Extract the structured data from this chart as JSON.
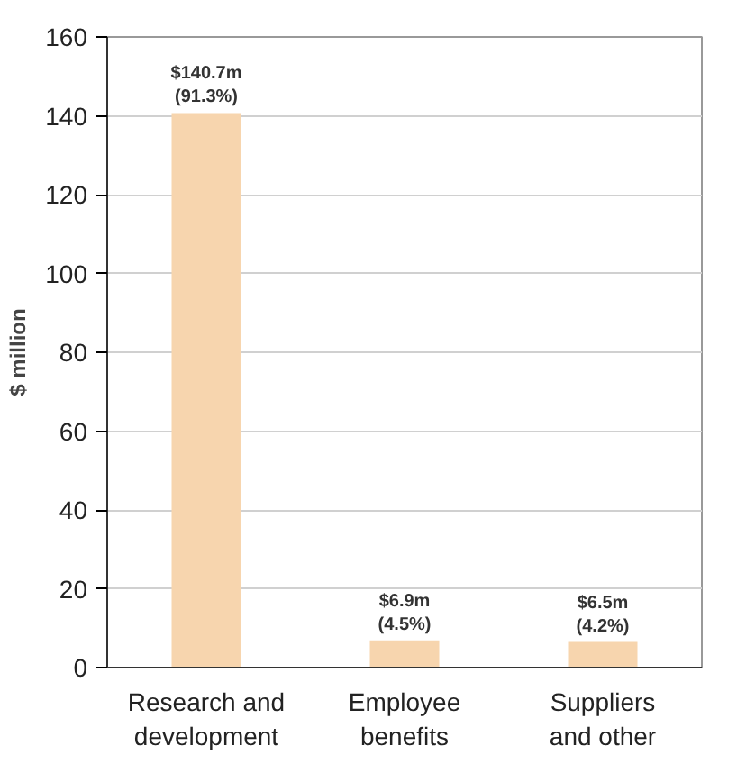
{
  "chart_data": {
    "type": "bar",
    "ylabel": "$ million",
    "categories": [
      "Research and\ndevelopment",
      "Employee\nbenefits",
      "Suppliers\nand other"
    ],
    "values": [
      140.7,
      6.9,
      6.5
    ],
    "value_labels": [
      "$140.7m",
      "$6.9m",
      "$6.5m"
    ],
    "annotations": [
      {
        "text": "(91.3%)",
        "x": "Research and\ndevelopment",
        "y": 140.7
      },
      {
        "text": "(4.5%)",
        "x": "Employee\nbenefits",
        "y": 6.9
      },
      {
        "text": "(4.2%)",
        "x": "Suppliers\nand other",
        "y": 6.5
      }
    ],
    "color": "#f7d5ae",
    "ylim": [
      0,
      160
    ],
    "yticks": [
      0,
      20,
      40,
      60,
      80,
      100,
      120,
      140,
      160
    ],
    "grid": "y"
  }
}
